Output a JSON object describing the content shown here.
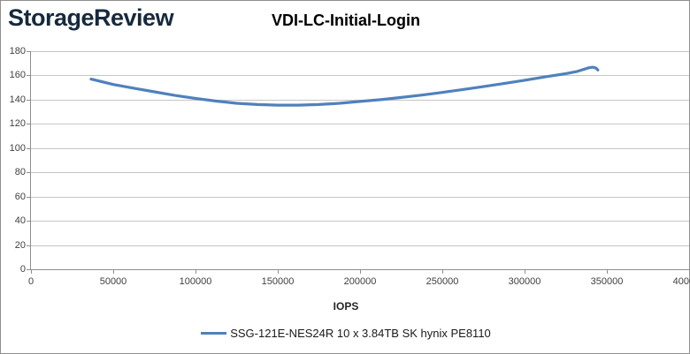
{
  "page": {
    "logo_text": "StorageReview",
    "logo_color": "#16293e"
  },
  "chart": {
    "title": "VDI-LC-Initial-Login",
    "x_axis_title": "IOPS",
    "legend": {
      "label": "SSG-121E-NES24R 10 x 3.84TB SK hynix PE8110",
      "color": "#4F81BD"
    },
    "gridline_color": "#c6c6c6",
    "axis_color": "#8e8e8e"
  },
  "chart_data": {
    "type": "line",
    "title": "VDI-LC-Initial-Login",
    "xlabel": "IOPS",
    "ylabel": "",
    "xlim": [
      0,
      400000
    ],
    "ylim": [
      0,
      180
    ],
    "x_ticks": [
      0,
      50000,
      100000,
      150000,
      200000,
      250000,
      300000,
      350000,
      400000
    ],
    "y_ticks": [
      0,
      20,
      40,
      60,
      80,
      100,
      120,
      140,
      160,
      180
    ],
    "grid": "horizontal",
    "legend_position": "bottom",
    "series": [
      {
        "name": "SSG-121E-NES24R 10 x 3.84TB SK hynix PE8110",
        "color": "#4F81BD",
        "points": [
          [
            36500,
            157.0
          ],
          [
            50000,
            152.5
          ],
          [
            62500,
            149.5
          ],
          [
            75000,
            146.5
          ],
          [
            87500,
            143.5
          ],
          [
            100000,
            141.0
          ],
          [
            112500,
            138.8
          ],
          [
            125000,
            137.0
          ],
          [
            137500,
            136.0
          ],
          [
            150000,
            135.5
          ],
          [
            162500,
            135.5
          ],
          [
            175000,
            136.0
          ],
          [
            187500,
            137.0
          ],
          [
            200000,
            138.5
          ],
          [
            212500,
            140.0
          ],
          [
            225000,
            141.8
          ],
          [
            237500,
            143.8
          ],
          [
            250000,
            146.0
          ],
          [
            262500,
            148.4
          ],
          [
            275000,
            150.8
          ],
          [
            287500,
            153.3
          ],
          [
            300000,
            156.0
          ],
          [
            312500,
            158.8
          ],
          [
            325000,
            161.5
          ],
          [
            332000,
            163.3
          ],
          [
            339000,
            166.3
          ],
          [
            341500,
            166.8
          ],
          [
            343500,
            166.0
          ],
          [
            344500,
            164.5
          ]
        ]
      }
    ]
  }
}
